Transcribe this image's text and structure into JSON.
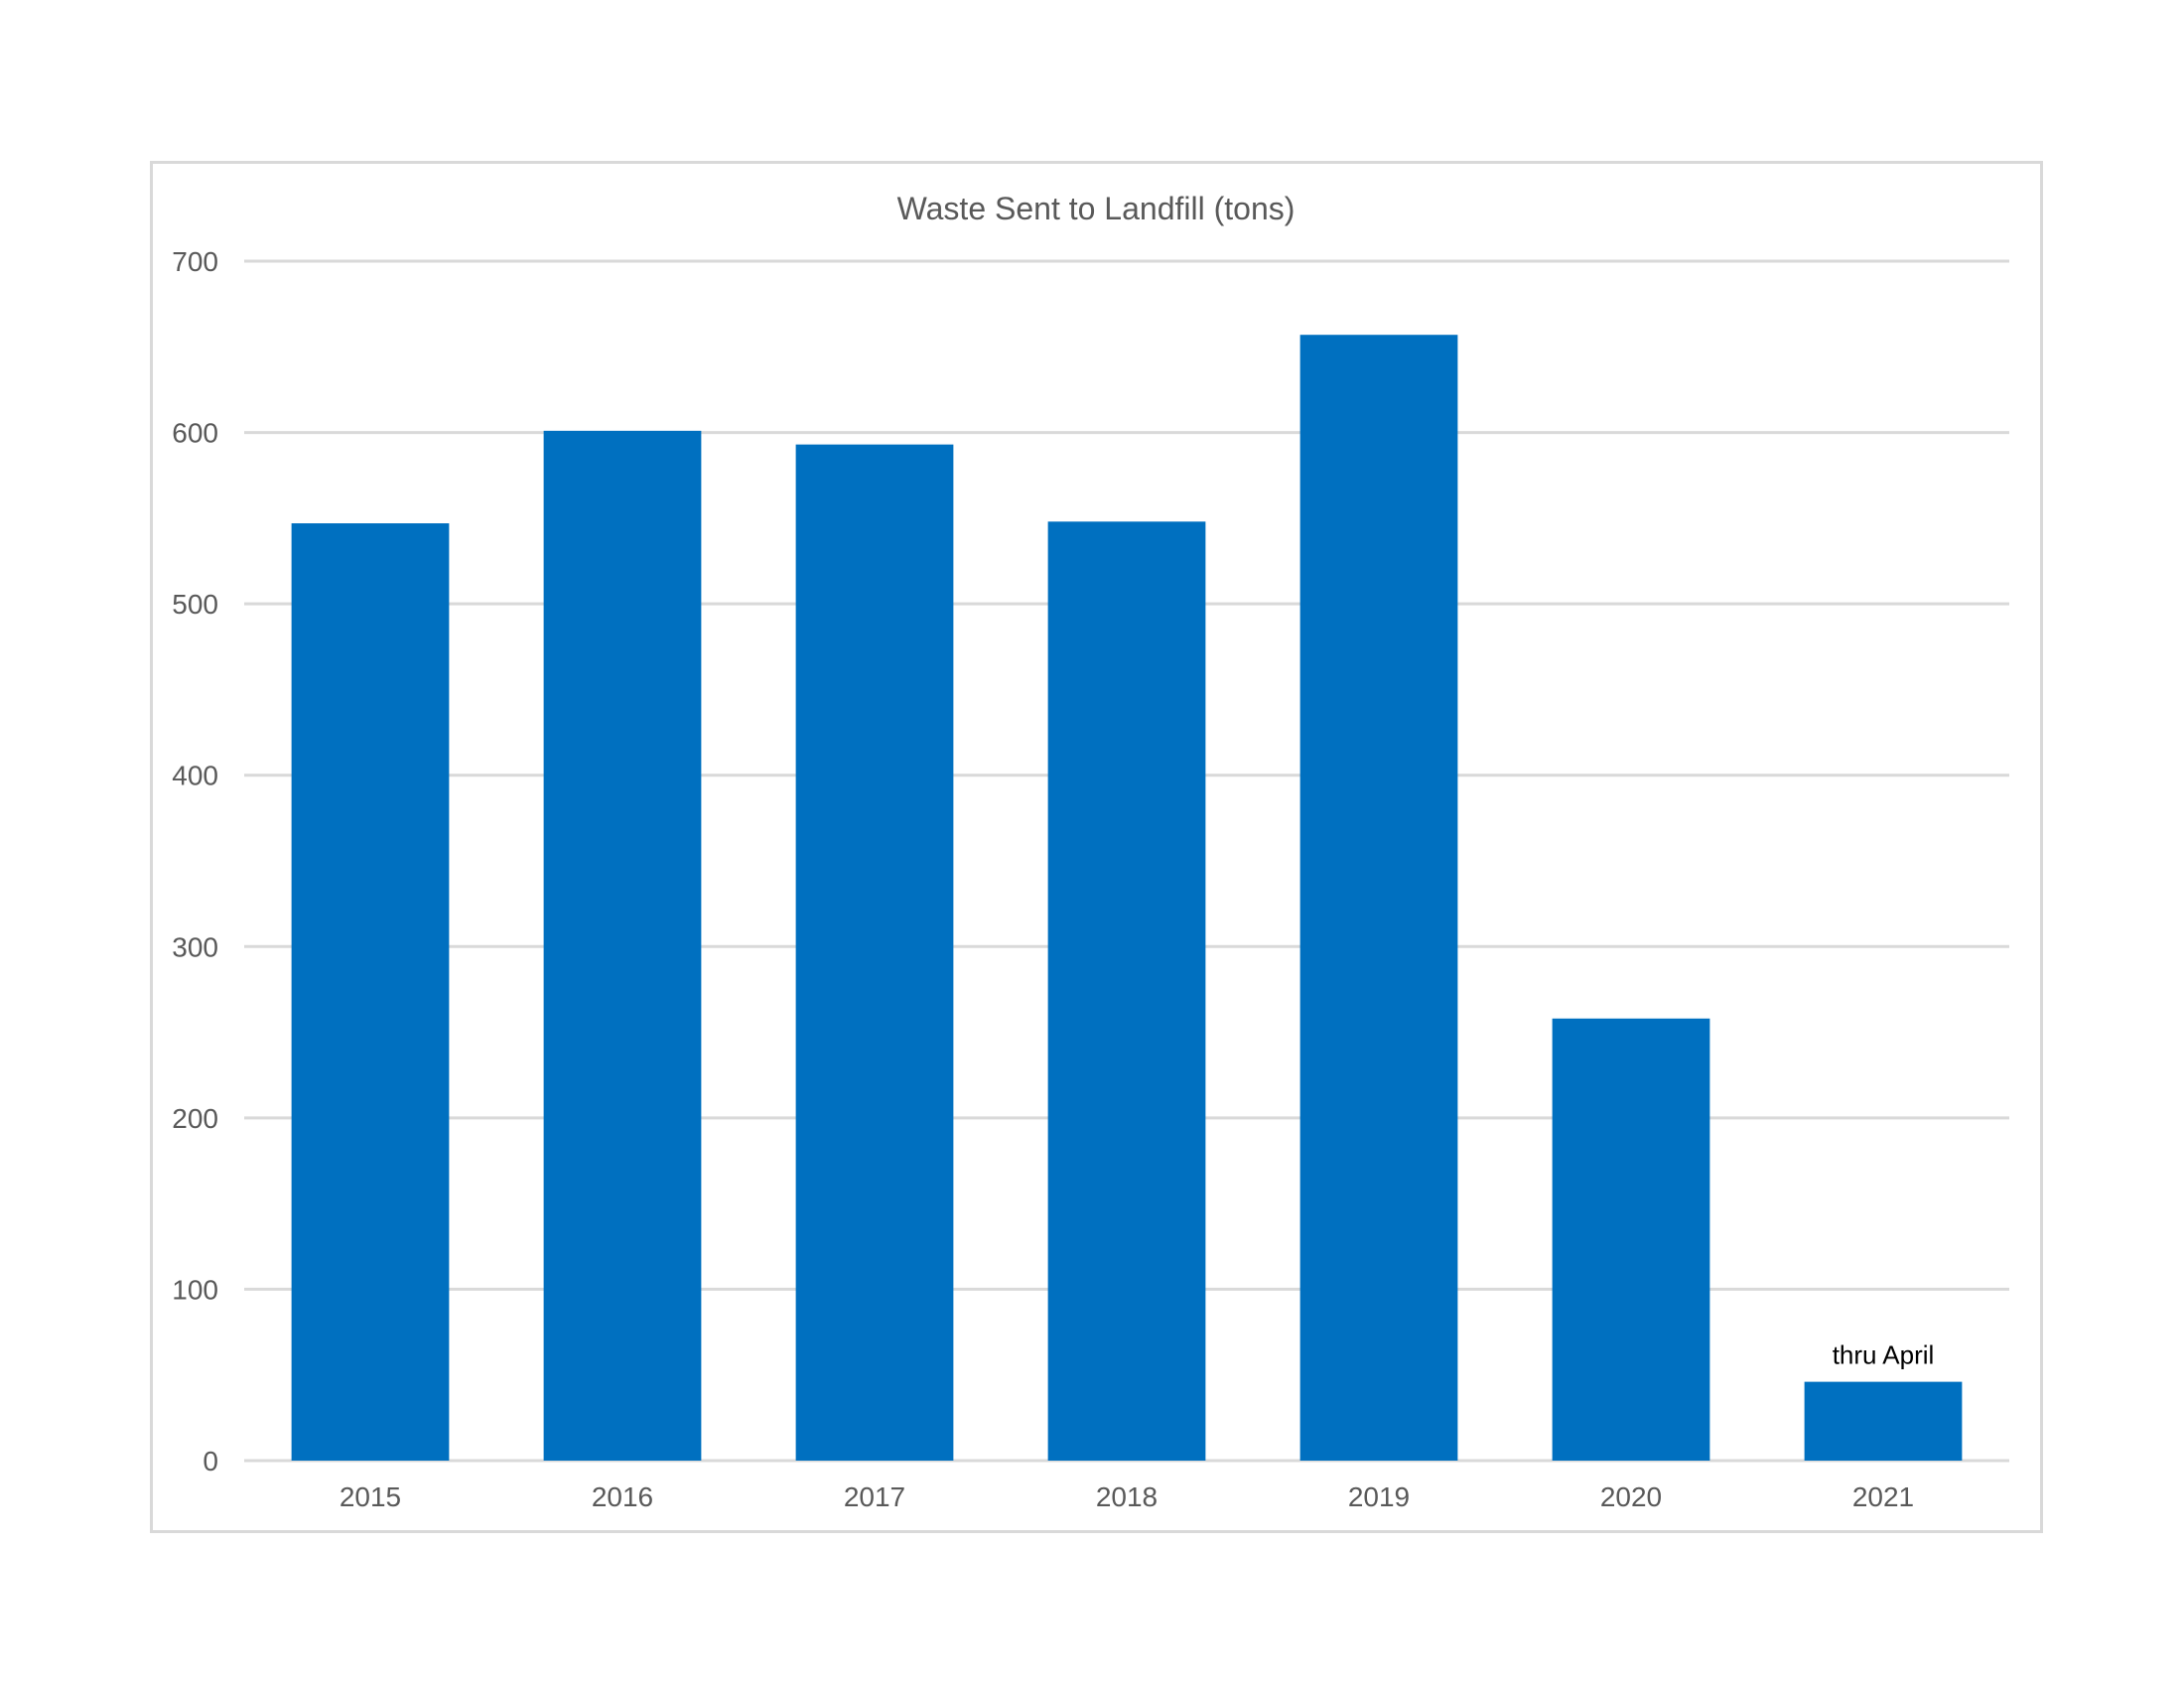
{
  "chart_data": {
    "type": "bar",
    "title": "Waste Sent to Landfill (tons)",
    "xlabel": "",
    "ylabel": "",
    "categories": [
      "2015",
      "2016",
      "2017",
      "2018",
      "2019",
      "2020",
      "2021"
    ],
    "values": [
      547,
      601,
      593,
      548,
      657,
      258,
      46
    ],
    "ylim": [
      0,
      700
    ],
    "yticks": [
      0,
      100,
      200,
      300,
      400,
      500,
      600,
      700
    ],
    "grid": true,
    "legend": "none",
    "bar_color": "#0070C0",
    "annotations": [
      {
        "category": "2021",
        "text": "thru April"
      }
    ]
  }
}
